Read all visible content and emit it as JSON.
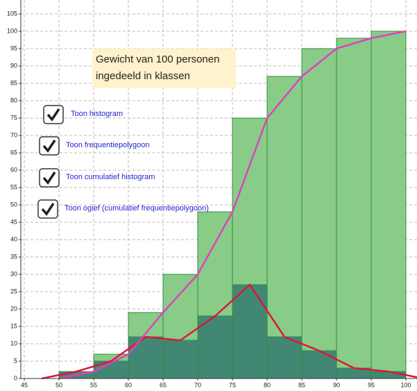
{
  "chart_data": {
    "type": "histogram",
    "annotations": [
      "Gewicht van 100 personen",
      "ingedeeld in klassen"
    ],
    "bins": [
      50,
      55,
      60,
      65,
      70,
      75,
      80,
      85,
      90,
      95,
      100
    ],
    "series": [
      {
        "type": "histogram",
        "color": "#88cc88",
        "values": [
          2,
          7,
          19,
          30,
          48,
          75,
          87,
          95,
          98,
          100
        ]
      },
      {
        "type": "histogram",
        "color": "#3a7f72",
        "values": [
          2,
          5,
          12,
          11,
          18,
          27,
          12,
          8,
          3,
          2
        ]
      },
      {
        "type": "line",
        "color": "#e0143c",
        "x": [
          47.5,
          52.5,
          57.5,
          62.5,
          67.5,
          72.5,
          77.5,
          82.5,
          87.5,
          92.5,
          97.5,
          102.5
        ],
        "values": [
          0,
          2,
          5,
          12,
          11,
          18,
          27,
          12,
          8,
          3,
          2,
          0
        ]
      },
      {
        "type": "line",
        "color": "#e040c0",
        "x": [
          50,
          55,
          60,
          65,
          70,
          75,
          80,
          85,
          90,
          95,
          100
        ],
        "values": [
          0,
          2,
          7,
          19,
          30,
          48,
          75,
          87,
          95,
          98,
          100
        ]
      }
    ],
    "xlim": [
      41.5,
      101.6
    ],
    "ylim": [
      -3.6,
      109
    ],
    "xticks": [
      45,
      50,
      55,
      60,
      65,
      70,
      75,
      80,
      85,
      90,
      95,
      100
    ],
    "yticks": [
      0,
      5,
      10,
      15,
      20,
      25,
      30,
      35,
      40,
      45,
      50,
      55,
      60,
      65,
      70,
      75,
      80,
      85,
      90,
      95,
      100,
      105
    ],
    "grid": true
  },
  "controls": [
    {
      "label": "Toon histogram",
      "checked": true
    },
    {
      "label": "Toon frequentiepolygoon",
      "checked": true
    },
    {
      "label": "Toon cumulatief histogram",
      "checked": true
    },
    {
      "label": "Toon ogief (cumulatief frequentiepolygoon)",
      "checked": true
    }
  ]
}
